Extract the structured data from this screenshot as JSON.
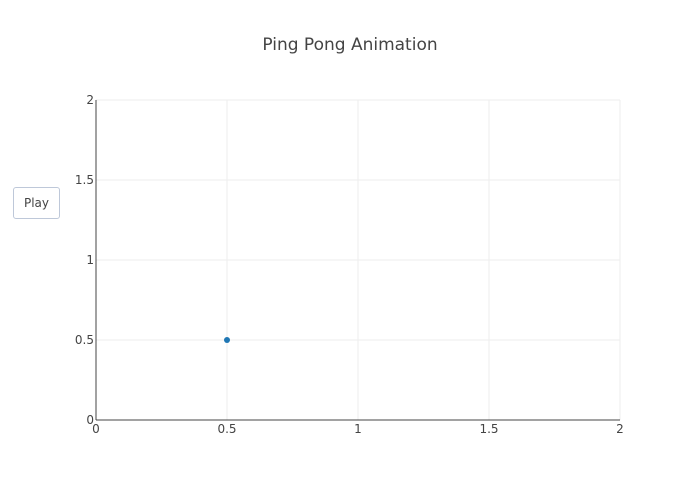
{
  "chart_data": {
    "type": "scatter",
    "title": "Ping Pong Animation",
    "button": "Play",
    "x": [
      0.5
    ],
    "values": [
      0.5
    ],
    "color": "#1f77b4",
    "xlim": [
      0,
      2
    ],
    "ylim": [
      0,
      2
    ],
    "xticks": [
      0,
      0.5,
      1,
      1.5,
      2
    ],
    "yticks": [
      0,
      0.5,
      1,
      1.5,
      2
    ],
    "grid": true
  }
}
